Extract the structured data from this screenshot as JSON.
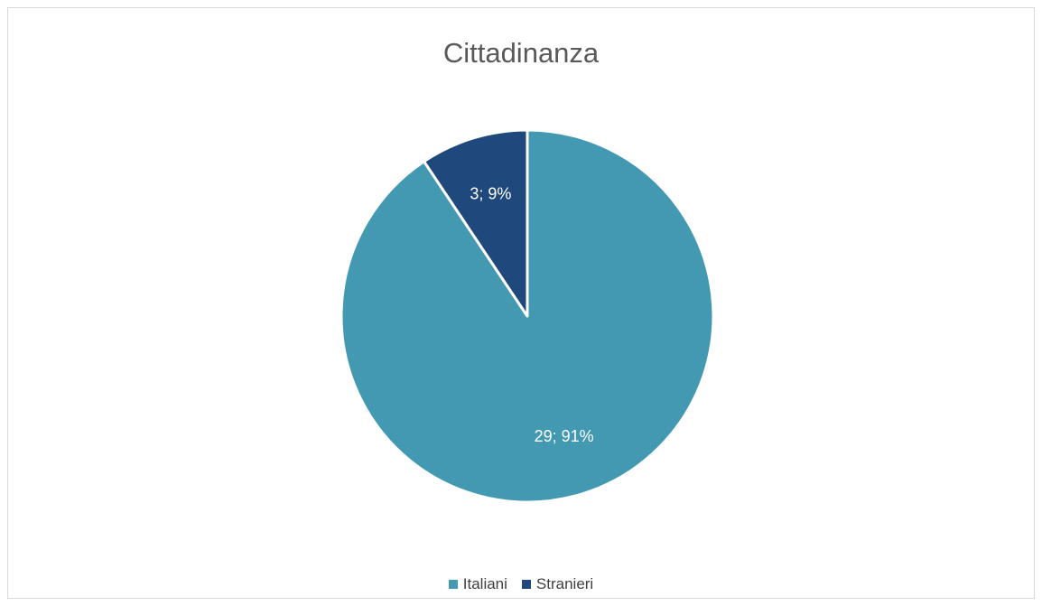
{
  "chart_data": {
    "type": "pie",
    "title": "Cittadinanza",
    "categories": [
      "Italiani",
      "Stranieri"
    ],
    "values": [
      29,
      3
    ],
    "percentages": [
      "91%",
      "9%"
    ],
    "data_labels": [
      "29; 91%",
      "3; 9%"
    ],
    "colors": [
      "#4399B1",
      "#1F497D"
    ],
    "legend_position": "bottom"
  }
}
